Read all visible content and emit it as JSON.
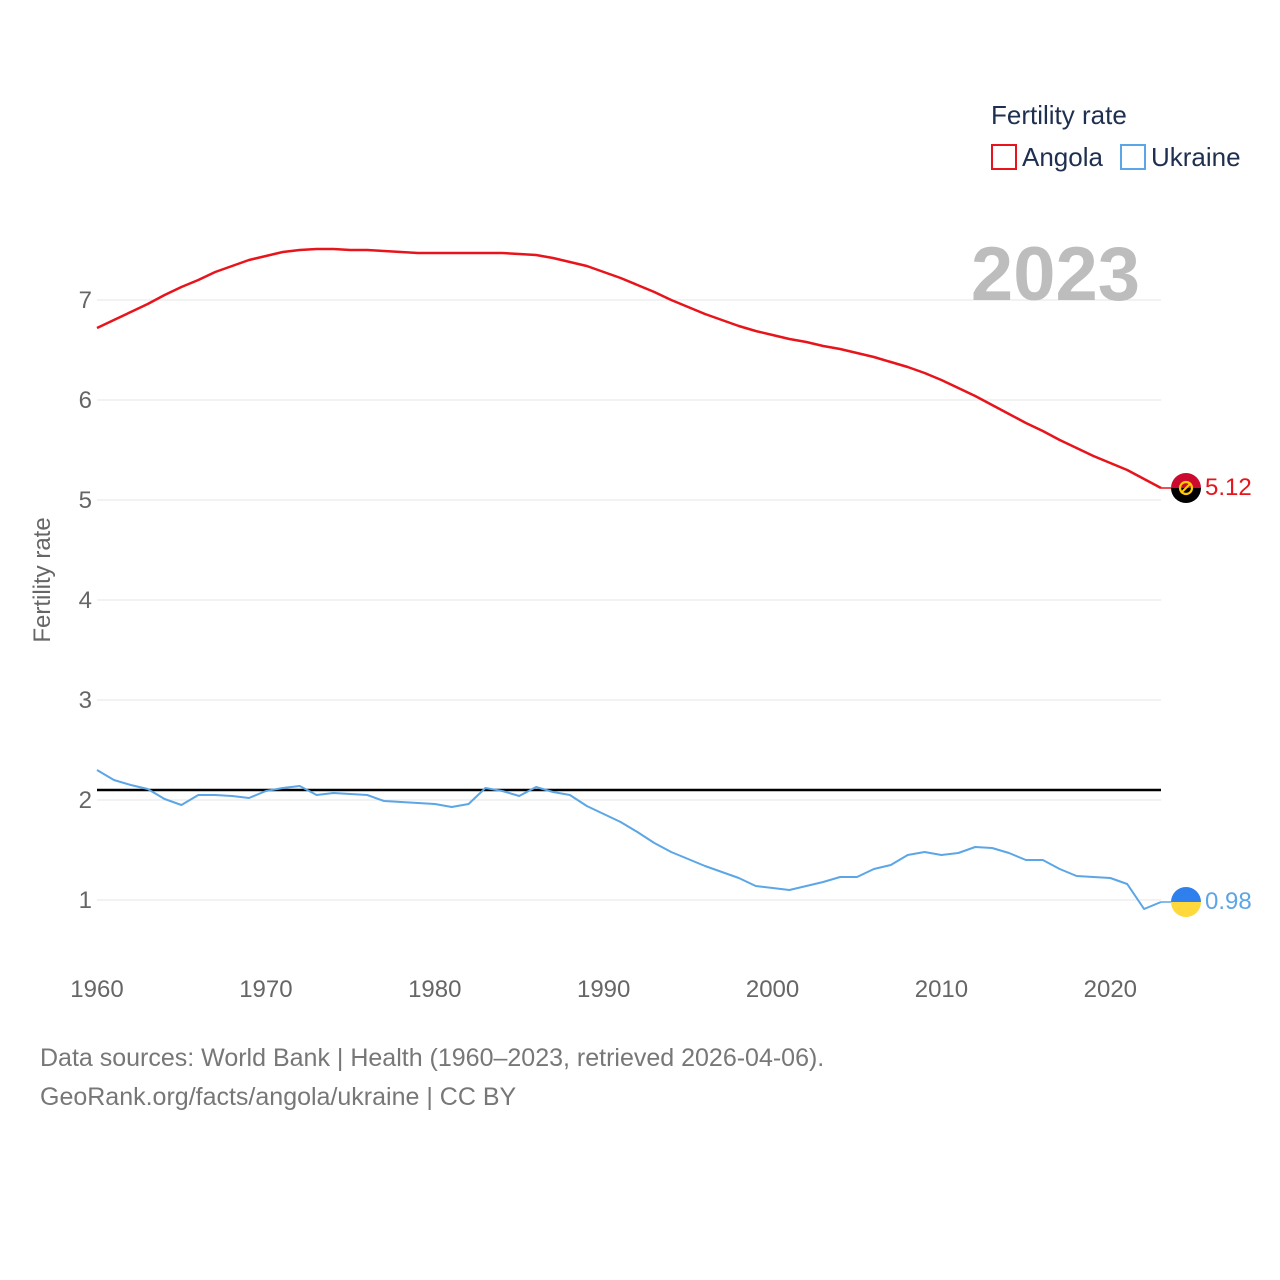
{
  "chart_data": {
    "type": "line",
    "title": "",
    "xlabel": "",
    "ylabel": "Fertility rate",
    "xlim": [
      1960,
      2023
    ],
    "ylim": [
      0.5,
      8
    ],
    "xticks": [
      1960,
      1970,
      1980,
      1990,
      2000,
      2010,
      2020
    ],
    "yticks": [
      1,
      2,
      3,
      4,
      5,
      6,
      7
    ],
    "year_label": "2023",
    "legend": {
      "title": "Fertility rate",
      "position": "top-right"
    },
    "reference_line": {
      "value": 2.1,
      "color": "#000000"
    },
    "x": [
      1960,
      1961,
      1962,
      1963,
      1964,
      1965,
      1966,
      1967,
      1968,
      1969,
      1970,
      1971,
      1972,
      1973,
      1974,
      1975,
      1976,
      1977,
      1978,
      1979,
      1980,
      1981,
      1982,
      1983,
      1984,
      1985,
      1986,
      1987,
      1988,
      1989,
      1990,
      1991,
      1992,
      1993,
      1994,
      1995,
      1996,
      1997,
      1998,
      1999,
      2000,
      2001,
      2002,
      2003,
      2004,
      2005,
      2006,
      2007,
      2008,
      2009,
      2010,
      2011,
      2012,
      2013,
      2014,
      2015,
      2016,
      2017,
      2018,
      2019,
      2020,
      2021,
      2022,
      2023
    ],
    "series": [
      {
        "name": "Angola",
        "color": "#e8141b",
        "end_label": "5.12",
        "flag": "angola-flag",
        "values": [
          6.72,
          6.8,
          6.88,
          6.96,
          7.05,
          7.13,
          7.2,
          7.28,
          7.34,
          7.4,
          7.44,
          7.48,
          7.5,
          7.51,
          7.51,
          7.5,
          7.5,
          7.49,
          7.48,
          7.47,
          7.47,
          7.47,
          7.47,
          7.47,
          7.47,
          7.46,
          7.45,
          7.42,
          7.38,
          7.34,
          7.28,
          7.22,
          7.15,
          7.08,
          7.0,
          6.93,
          6.86,
          6.8,
          6.74,
          6.69,
          6.65,
          6.61,
          6.58,
          6.54,
          6.51,
          6.47,
          6.43,
          6.38,
          6.33,
          6.27,
          6.2,
          6.12,
          6.04,
          5.95,
          5.86,
          5.77,
          5.69,
          5.6,
          5.52,
          5.44,
          5.37,
          5.3,
          5.21,
          5.12
        ]
      },
      {
        "name": "Ukraine",
        "color": "#5ba6e6",
        "end_label": "0.98",
        "flag": "ukraine-flag",
        "values": [
          2.3,
          2.2,
          2.15,
          2.11,
          2.01,
          1.95,
          2.05,
          2.05,
          2.04,
          2.02,
          2.09,
          2.12,
          2.14,
          2.05,
          2.07,
          2.06,
          2.05,
          1.99,
          1.98,
          1.97,
          1.96,
          1.93,
          1.96,
          2.12,
          2.09,
          2.04,
          2.13,
          2.08,
          2.05,
          1.94,
          1.86,
          1.78,
          1.68,
          1.57,
          1.48,
          1.41,
          1.34,
          1.28,
          1.22,
          1.14,
          1.12,
          1.1,
          1.14,
          1.18,
          1.23,
          1.23,
          1.31,
          1.35,
          1.45,
          1.48,
          1.45,
          1.47,
          1.53,
          1.52,
          1.47,
          1.4,
          1.4,
          1.31,
          1.24,
          1.23,
          1.22,
          1.16,
          0.91,
          0.98
        ]
      }
    ]
  },
  "footer": {
    "source": "Data sources: World Bank | Health (1960–2023, retrieved 2026-04-06).",
    "url": "GeoRank.org/facts/angola/ukraine | CC BY"
  }
}
